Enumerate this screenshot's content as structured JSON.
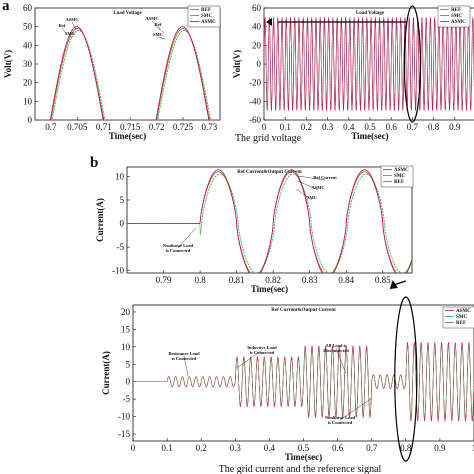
{
  "panel_labels": [
    "a",
    "b"
  ],
  "captions": [
    "The grid voltage",
    "The grid current and the reference signal"
  ],
  "colors": {
    "asmc": "#d1006b",
    "smc": "#2aa52a",
    "ref": "#8a6a2a",
    "arrow": "#000000"
  },
  "chart_data": [
    {
      "type": "line",
      "title": "Load Voltage",
      "xlabel": "Time(sec)",
      "ylabel": "Volt(V)",
      "xlim": [
        0.697,
        0.732
      ],
      "ylim": [
        0,
        60
      ],
      "xticks": [
        "0.7",
        "0.705",
        "0.71",
        "0.715",
        "0.72",
        "0.725",
        "0.73"
      ],
      "yticks": [
        "0",
        "10",
        "20",
        "30",
        "40",
        "50",
        "60"
      ],
      "legend": {
        "entries": [
          "REF",
          "SMC",
          "ASMC"
        ],
        "placement": "top-right"
      },
      "series": [
        {
          "name": "REF",
          "signal": "rectified_sine",
          "amplitude": 49,
          "frequency_hz": 50,
          "phase_deg": 0,
          "window": [
            0.697,
            0.732
          ]
        },
        {
          "name": "SMC",
          "signal": "rectified_sine",
          "amplitude": 48,
          "frequency_hz": 50,
          "phase_deg": -4,
          "window": [
            0.697,
            0.732
          ]
        },
        {
          "name": "ASMC",
          "signal": "rectified_sine",
          "amplitude": 50,
          "frequency_hz": 50,
          "phase_deg": 2,
          "window": [
            0.697,
            0.732
          ]
        }
      ],
      "annotations": [
        "Ref",
        "SMC",
        "ASMC",
        "Ref",
        "ASMC",
        "SMC"
      ]
    },
    {
      "type": "line",
      "title": "Load Voltage",
      "xlabel": "Time(sec)",
      "ylabel": "Volt(V)",
      "xlim": [
        0,
        1
      ],
      "ylim": [
        -60,
        60
      ],
      "xticks": [
        "0",
        "0.1",
        "0.2",
        "0.3",
        "0.4",
        "0.5",
        "0.6",
        "0.7",
        "0.8",
        "0.9",
        "1"
      ],
      "yticks": [
        "-60",
        "-40",
        "-20",
        "0",
        "20",
        "40",
        "60"
      ],
      "legend": {
        "entries": [
          "REF",
          "SMC",
          "ASMC"
        ],
        "placement": "top-right"
      },
      "series": [
        {
          "name": "REF",
          "signal": "sine",
          "amplitude": 49,
          "frequency_hz": 50,
          "window": [
            0,
            1
          ]
        },
        {
          "name": "SMC",
          "signal": "sine",
          "amplitude": 48,
          "frequency_hz": 50,
          "window": [
            0,
            1
          ]
        },
        {
          "name": "ASMC",
          "signal": "sine",
          "amplitude": 50,
          "frequency_hz": 50,
          "window": [
            0,
            1
          ]
        }
      ],
      "annotations": []
    },
    {
      "type": "line",
      "title": "Ref Current&Output Current",
      "xlabel": "Time(sec)",
      "ylabel": "Current(A)",
      "xlim": [
        0.78,
        0.858
      ],
      "ylim": [
        -10.5,
        12
      ],
      "xticks": [
        "0.79",
        "0.8",
        "0.81",
        "0.82",
        "0.83",
        "0.84",
        "0.85"
      ],
      "yticks": [
        "-10",
        "-5",
        "0",
        "5",
        "10"
      ],
      "legend": {
        "entries": [
          "ASMC",
          "SMC",
          "REF"
        ],
        "placement": "top-right"
      },
      "series": [
        {
          "name": "REF",
          "signal": "load_current",
          "load_on_at": 0.8,
          "frequency_hz": 50,
          "base_amplitude": 0,
          "nonlinear_amplitude": 11
        },
        {
          "name": "ASMC",
          "signal": "load_current",
          "load_on_at": 0.8,
          "frequency_hz": 50,
          "base_amplitude": 0,
          "nonlinear_amplitude": 11.4
        },
        {
          "name": "SMC",
          "signal": "load_current",
          "load_on_at": 0.8,
          "frequency_hz": 50,
          "base_amplitude": 0,
          "nonlinear_amplitude": 10.5,
          "phase_deg": -8
        }
      ],
      "annotations": [
        "Nonlinear Load is Connected",
        "Ref Current",
        "ASMC",
        "SMC"
      ]
    },
    {
      "type": "line",
      "title": "Ref Current&Output Current",
      "xlabel": "Time(sec)",
      "ylabel": "Current(A)",
      "xlim": [
        0,
        1
      ],
      "ylim": [
        -17,
        22
      ],
      "xticks": [
        "0",
        "0.1",
        "0.2",
        "0.3",
        "0.4",
        "0.5",
        "0.6",
        "0.7",
        "0.8",
        "0.9",
        "1"
      ],
      "yticks": [
        "-15",
        "-10",
        "-5",
        "0",
        "5",
        "10",
        "15",
        "20"
      ],
      "legend": {
        "entries": [
          "ASMC",
          "SMC",
          "REF"
        ],
        "placement": "top-right"
      },
      "load_events": [
        {
          "time": 0.1,
          "amplitude": 1.5
        },
        {
          "time": 0.3,
          "amplitude": 7
        },
        {
          "time": 0.5,
          "amplitude": 10
        },
        {
          "time": 0.7,
          "amplitude": 2
        },
        {
          "time": 0.8,
          "amplitude": 11
        }
      ],
      "series": [
        {
          "name": "REF",
          "frequency_hz": 50
        },
        {
          "name": "ASMC",
          "frequency_hz": 50
        },
        {
          "name": "SMC",
          "frequency_hz": 50
        }
      ],
      "annotations": [
        "Resistance Load is Connected",
        "Inductive Load is Connected",
        "All Load is Disconnected",
        "Nonlinear Load is Connected"
      ]
    }
  ]
}
